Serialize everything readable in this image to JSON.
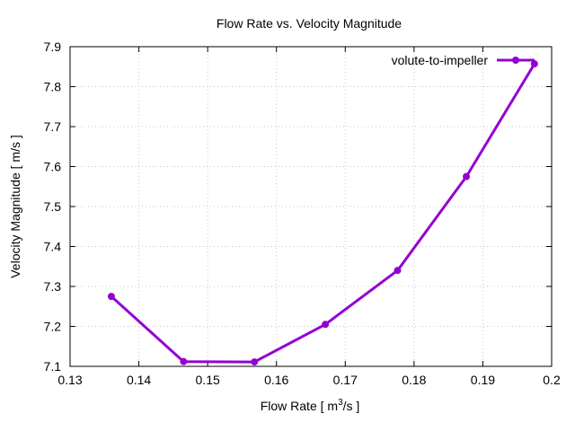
{
  "chart_data": {
    "type": "line",
    "title": "Flow Rate vs. Velocity Magnitude",
    "xlabel_main": "Flow Rate [ m",
    "xlabel_sup": "3",
    "xlabel_tail": "/s ]",
    "ylabel": "Velocity Magnitude [ m/s ]",
    "xlim": [
      0.13,
      0.2
    ],
    "ylim": [
      7.1,
      7.9
    ],
    "xticks": [
      "0.13",
      "0.14",
      "0.15",
      "0.16",
      "0.17",
      "0.18",
      "0.19",
      "0.2"
    ],
    "yticks": [
      "7.1",
      "7.2",
      "7.3",
      "7.4",
      "7.5",
      "7.6",
      "7.7",
      "7.8",
      "7.9"
    ],
    "grid": true,
    "legend_position": "top-right",
    "series": [
      {
        "name": "volute-to-impeller",
        "color": "#9400d3",
        "x": [
          0.136,
          0.1465,
          0.1568,
          0.1671,
          0.1776,
          0.1876,
          0.1975
        ],
        "y": [
          7.275,
          7.112,
          7.111,
          7.205,
          7.34,
          7.575,
          7.857
        ]
      }
    ]
  }
}
